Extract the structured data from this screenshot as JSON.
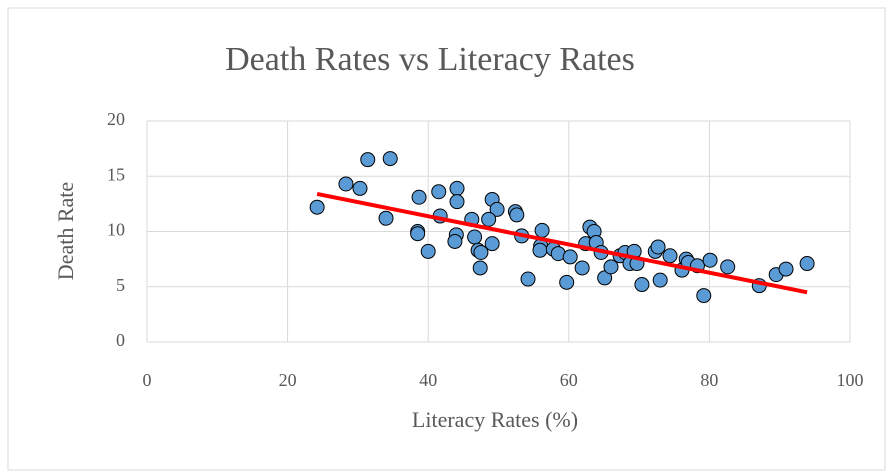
{
  "chart_data": {
    "type": "scatter",
    "title": "Death Rates vs Literacy Rates",
    "x_label": "Literacy Rates (%)",
    "y_label": "Death Rate",
    "x": [
      24.2,
      28.3,
      30.3,
      31.4,
      34.6,
      34.0,
      38.7,
      38.5,
      38.5,
      40.0,
      41.5,
      41.7,
      44.1,
      44.1,
      44.0,
      43.8,
      46.2,
      46.6,
      47.1,
      47.4,
      47.5,
      49.1,
      49.8,
      48.6,
      49.1,
      52.4,
      52.6,
      53.3,
      54.2,
      56.2,
      56.0,
      55.9,
      57.8,
      58.5,
      60.2,
      59.7,
      61.9,
      62.4,
      63.0,
      63.6,
      63.9,
      64.6,
      65.1,
      66.0,
      67.3,
      68.0,
      68.7,
      69.3,
      69.7,
      70.4,
      72.3,
      72.7,
      73.0,
      74.4,
      76.1,
      76.7,
      77.0,
      78.3,
      79.2,
      80.1,
      82.6,
      87.1,
      89.5,
      90.9,
      93.9
    ],
    "values": [
      12.2,
      14.3,
      13.9,
      16.5,
      16.6,
      11.2,
      13.1,
      10.0,
      9.8,
      8.2,
      13.6,
      11.4,
      13.9,
      12.7,
      9.7,
      9.1,
      11.1,
      9.5,
      8.3,
      6.7,
      8.1,
      12.9,
      12.0,
      11.1,
      8.9,
      11.8,
      11.5,
      9.6,
      5.7,
      10.1,
      8.7,
      8.3,
      8.4,
      8.0,
      7.7,
      5.4,
      6.7,
      8.9,
      10.4,
      10.0,
      9.0,
      8.1,
      5.8,
      6.8,
      7.8,
      8.1,
      7.1,
      8.2,
      7.1,
      5.2,
      8.2,
      8.6,
      5.6,
      7.8,
      6.5,
      7.5,
      7.2,
      6.9,
      4.2,
      7.4,
      6.8,
      5.1,
      6.1,
      6.6,
      7.1
    ],
    "color": "#5b9bd5",
    "trendline": {
      "x": [
        24.2,
        93.9
      ],
      "values": [
        13.4,
        4.5
      ],
      "color": "#ff0000"
    },
    "xlim": [
      0,
      100
    ],
    "xticks": [
      0,
      20,
      40,
      60,
      80,
      100
    ],
    "ylim": [
      0,
      20
    ],
    "yticks": [
      0,
      5,
      10,
      15,
      20
    ],
    "grid": true
  }
}
